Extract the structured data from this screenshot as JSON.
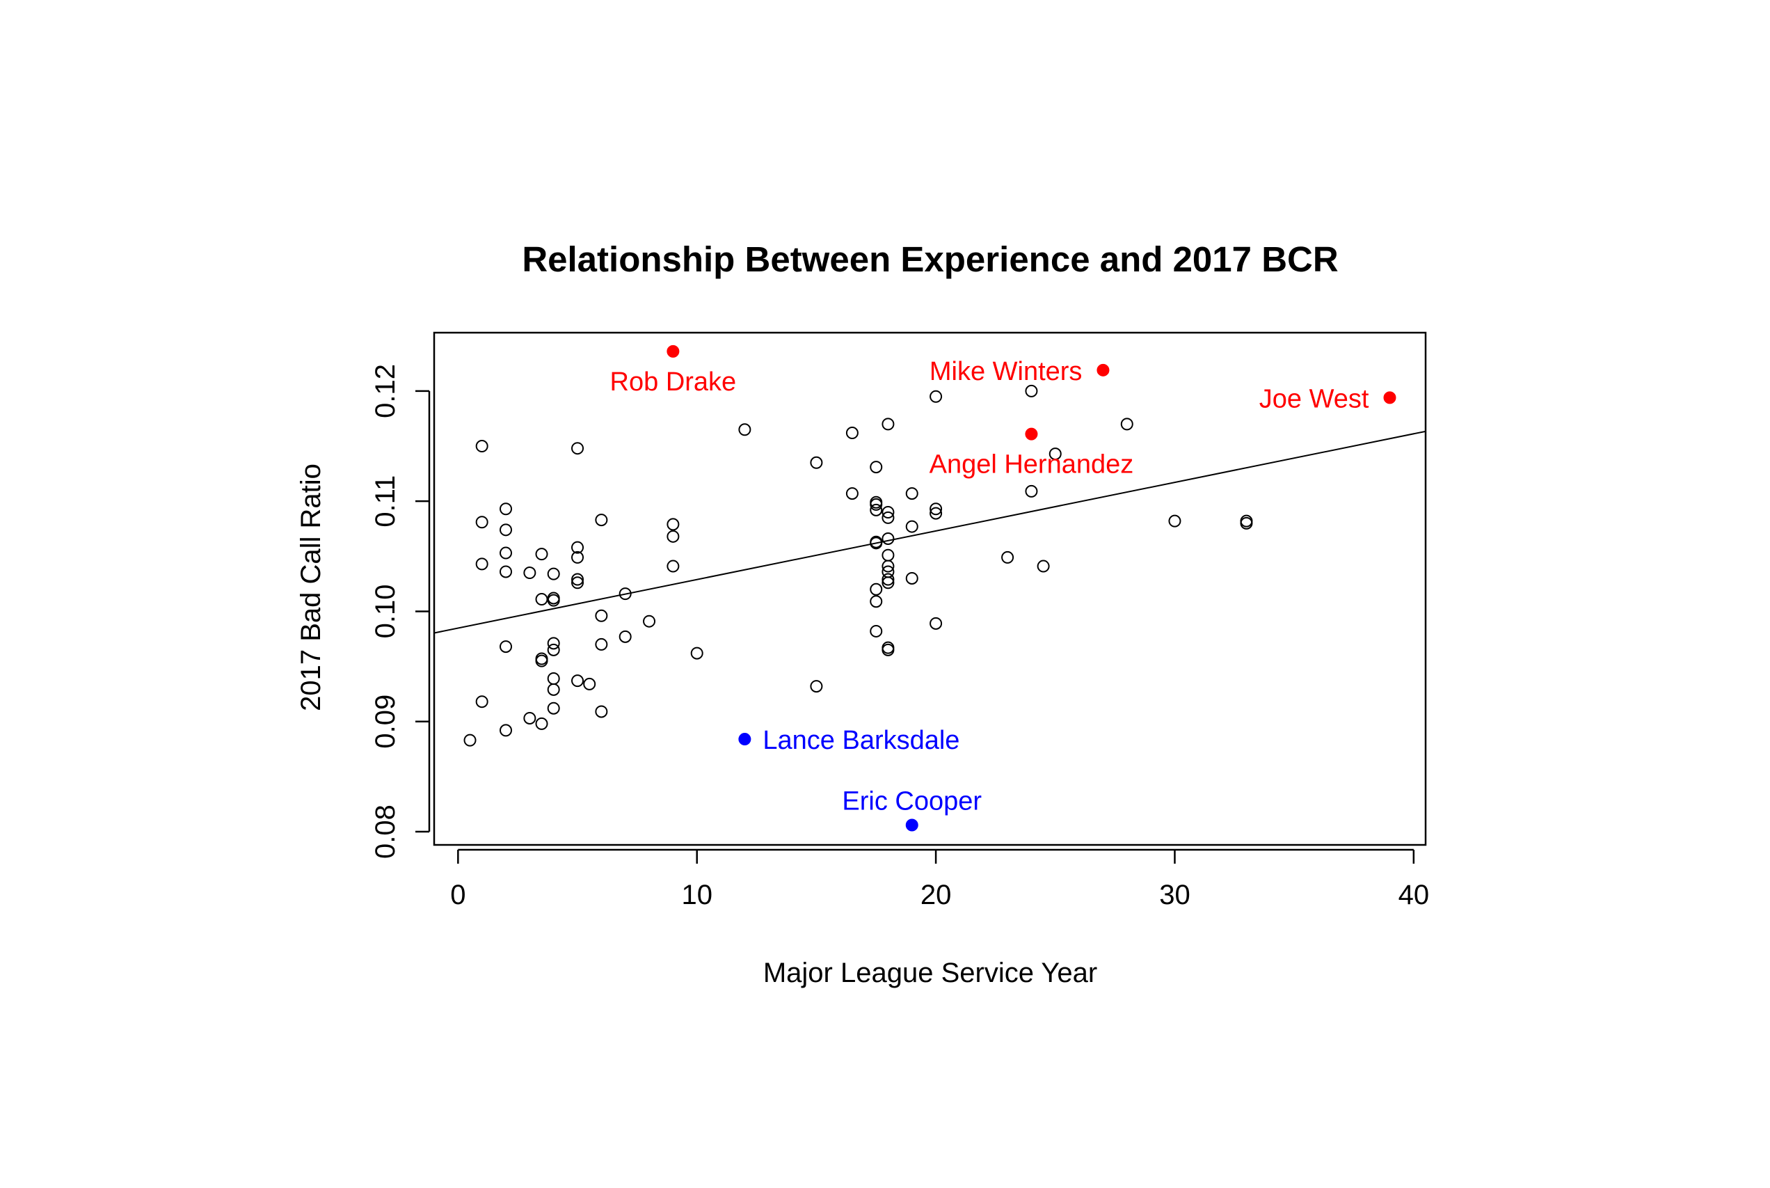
{
  "chart_data": {
    "type": "scatter",
    "title": "Relationship Between Experience and 2017 BCR",
    "xlabel": "Major League Service Year",
    "ylabel": "2017 Bad Call Ratio",
    "xlim": [
      -1,
      40.5
    ],
    "ylim": [
      0.0788,
      0.1253
    ],
    "xticks": [
      0,
      10,
      20,
      30,
      40
    ],
    "xtick_labels": [
      "0",
      "10",
      "20",
      "30",
      "40"
    ],
    "yticks": [
      0.08,
      0.09,
      0.1,
      0.11,
      0.12
    ],
    "ytick_labels": [
      "0.08",
      "0.09",
      "0.10",
      "0.11",
      "0.12"
    ],
    "grid": false,
    "regression_line": {
      "intercept": 0.09848,
      "slope": 0.000441
    },
    "colors": {
      "default": "#000000",
      "high": "#ff0000",
      "low": "#0000ff"
    },
    "points": [
      {
        "x": 0.5,
        "y": 0.0883
      },
      {
        "x": 1,
        "y": 0.115
      },
      {
        "x": 1,
        "y": 0.1081
      },
      {
        "x": 1,
        "y": 0.1043
      },
      {
        "x": 1,
        "y": 0.0918
      },
      {
        "x": 2,
        "y": 0.1093
      },
      {
        "x": 2,
        "y": 0.1074
      },
      {
        "x": 2,
        "y": 0.1053
      },
      {
        "x": 2,
        "y": 0.1036
      },
      {
        "x": 2,
        "y": 0.0968
      },
      {
        "x": 2,
        "y": 0.0892
      },
      {
        "x": 3,
        "y": 0.1035
      },
      {
        "x": 3,
        "y": 0.0903
      },
      {
        "x": 3.5,
        "y": 0.1052
      },
      {
        "x": 3.5,
        "y": 0.1011
      },
      {
        "x": 3.5,
        "y": 0.0957
      },
      {
        "x": 3.5,
        "y": 0.0955
      },
      {
        "x": 3.5,
        "y": 0.0898
      },
      {
        "x": 4,
        "y": 0.1034
      },
      {
        "x": 4,
        "y": 0.1012
      },
      {
        "x": 4,
        "y": 0.101
      },
      {
        "x": 4,
        "y": 0.0971
      },
      {
        "x": 4,
        "y": 0.0965
      },
      {
        "x": 4,
        "y": 0.0939
      },
      {
        "x": 4,
        "y": 0.0929
      },
      {
        "x": 4,
        "y": 0.0912
      },
      {
        "x": 5,
        "y": 0.1148
      },
      {
        "x": 5,
        "y": 0.1058
      },
      {
        "x": 5,
        "y": 0.1049
      },
      {
        "x": 5,
        "y": 0.1029
      },
      {
        "x": 5,
        "y": 0.1026
      },
      {
        "x": 5,
        "y": 0.0937
      },
      {
        "x": 5.5,
        "y": 0.0934
      },
      {
        "x": 6,
        "y": 0.1083
      },
      {
        "x": 6,
        "y": 0.0996
      },
      {
        "x": 6,
        "y": 0.097
      },
      {
        "x": 6,
        "y": 0.0909
      },
      {
        "x": 7,
        "y": 0.1016
      },
      {
        "x": 7,
        "y": 0.0977
      },
      {
        "x": 8,
        "y": 0.0991
      },
      {
        "x": 9,
        "y": 0.1079
      },
      {
        "x": 9,
        "y": 0.1068
      },
      {
        "x": 9,
        "y": 0.1041
      },
      {
        "x": 10,
        "y": 0.0962
      },
      {
        "x": 12,
        "y": 0.1165
      },
      {
        "x": 15,
        "y": 0.1135
      },
      {
        "x": 15,
        "y": 0.0932
      },
      {
        "x": 16.5,
        "y": 0.1162
      },
      {
        "x": 16.5,
        "y": 0.1107
      },
      {
        "x": 17.5,
        "y": 0.1131
      },
      {
        "x": 17.5,
        "y": 0.1099
      },
      {
        "x": 17.5,
        "y": 0.1097
      },
      {
        "x": 17.5,
        "y": 0.1092
      },
      {
        "x": 17.5,
        "y": 0.1063
      },
      {
        "x": 17.5,
        "y": 0.1062
      },
      {
        "x": 17.5,
        "y": 0.102
      },
      {
        "x": 17.5,
        "y": 0.1009
      },
      {
        "x": 17.5,
        "y": 0.0982
      },
      {
        "x": 18,
        "y": 0.117
      },
      {
        "x": 18,
        "y": 0.109
      },
      {
        "x": 18,
        "y": 0.1085
      },
      {
        "x": 18,
        "y": 0.1066
      },
      {
        "x": 18,
        "y": 0.1051
      },
      {
        "x": 18,
        "y": 0.1041
      },
      {
        "x": 18,
        "y": 0.1036
      },
      {
        "x": 18,
        "y": 0.1029
      },
      {
        "x": 18,
        "y": 0.1026
      },
      {
        "x": 18,
        "y": 0.0967
      },
      {
        "x": 18,
        "y": 0.0965
      },
      {
        "x": 19,
        "y": 0.1107
      },
      {
        "x": 19,
        "y": 0.1077
      },
      {
        "x": 19,
        "y": 0.103
      },
      {
        "x": 20,
        "y": 0.1195
      },
      {
        "x": 20,
        "y": 0.1093
      },
      {
        "x": 20,
        "y": 0.1089
      },
      {
        "x": 20,
        "y": 0.0989
      },
      {
        "x": 23,
        "y": 0.1049
      },
      {
        "x": 24,
        "y": 0.12
      },
      {
        "x": 24,
        "y": 0.1109
      },
      {
        "x": 24.5,
        "y": 0.1041
      },
      {
        "x": 25,
        "y": 0.1143
      },
      {
        "x": 28,
        "y": 0.117
      },
      {
        "x": 30,
        "y": 0.1082
      },
      {
        "x": 33,
        "y": 0.1082
      },
      {
        "x": 33,
        "y": 0.108
      }
    ],
    "highlighted": [
      {
        "name": "Rob Drake",
        "x": 9,
        "y": 0.1236,
        "color": "#ff0000",
        "label_pos": "below"
      },
      {
        "name": "Mike Winters",
        "x": 27,
        "y": 0.1219,
        "color": "#ff0000",
        "label_pos": "left"
      },
      {
        "name": "Joe West",
        "x": 39,
        "y": 0.1194,
        "color": "#ff0000",
        "label_pos": "left"
      },
      {
        "name": "Angel Hernandez",
        "x": 24,
        "y": 0.1161,
        "color": "#ff0000",
        "label_pos": "below"
      },
      {
        "name": "Lance Barksdale",
        "x": 12,
        "y": 0.0884,
        "color": "#0000ff",
        "label_pos": "right"
      },
      {
        "name": "Eric Cooper",
        "x": 19,
        "y": 0.0806,
        "color": "#0000ff",
        "label_pos": "above"
      }
    ]
  }
}
